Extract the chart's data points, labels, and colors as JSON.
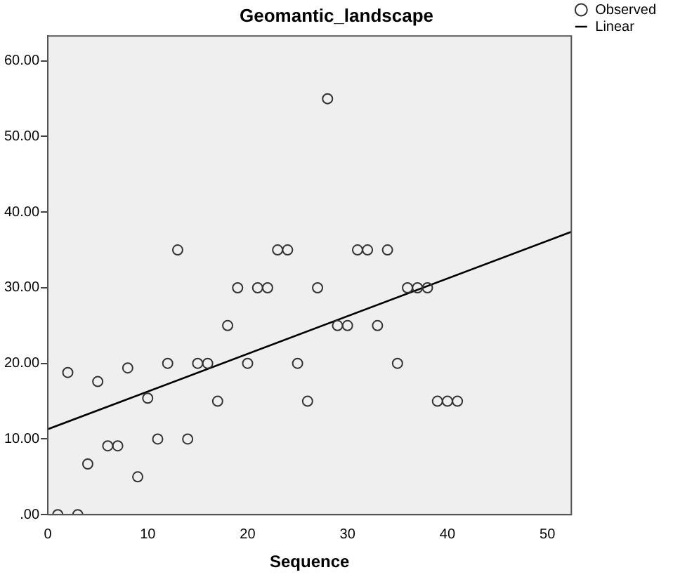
{
  "chart_data": {
    "type": "scatter",
    "title": "Geomantic_landscape",
    "xlabel": "Sequence",
    "xlim": [
      0,
      52.4
    ],
    "xticks": [
      0,
      10,
      20,
      30,
      40,
      50
    ],
    "ylim": [
      0,
      63.3
    ],
    "yticks": [
      {
        "value": 0,
        "label": ".00"
      },
      {
        "value": 10,
        "label": "10.00"
      },
      {
        "value": 20,
        "label": "20.00"
      },
      {
        "value": 30,
        "label": "30.00"
      },
      {
        "value": 40,
        "label": "40.00"
      },
      {
        "value": 50,
        "label": "50.00"
      },
      {
        "value": 60,
        "label": "60.00"
      }
    ],
    "grid": false,
    "legend": "top right",
    "series": [
      {
        "name": "Observed",
        "marker": "circle",
        "color": "#333333",
        "x": [
          1,
          2,
          3,
          4,
          5,
          6,
          7,
          8,
          9,
          10,
          11,
          12,
          13,
          14,
          15,
          16,
          17,
          18,
          19,
          20,
          21,
          22,
          23,
          24,
          25,
          26,
          27,
          28,
          29,
          30,
          31,
          32,
          33,
          34,
          35,
          36,
          37,
          38,
          39,
          40,
          41
        ],
        "values": [
          0,
          18.8,
          0,
          6.7,
          17.6,
          9.1,
          9.1,
          19.4,
          5,
          15.4,
          10,
          20,
          35,
          10,
          20,
          20,
          15,
          25,
          30,
          20,
          30,
          30,
          35,
          35,
          20,
          15,
          30,
          55,
          25,
          25,
          35,
          35,
          25,
          35,
          20,
          30,
          30,
          30,
          15,
          15,
          15
        ]
      },
      {
        "name": "Linear",
        "type": "line",
        "marker": "none",
        "color": "#000000",
        "x": [
          0,
          52.4
        ],
        "values": [
          11.3,
          37.4
        ]
      }
    ]
  }
}
